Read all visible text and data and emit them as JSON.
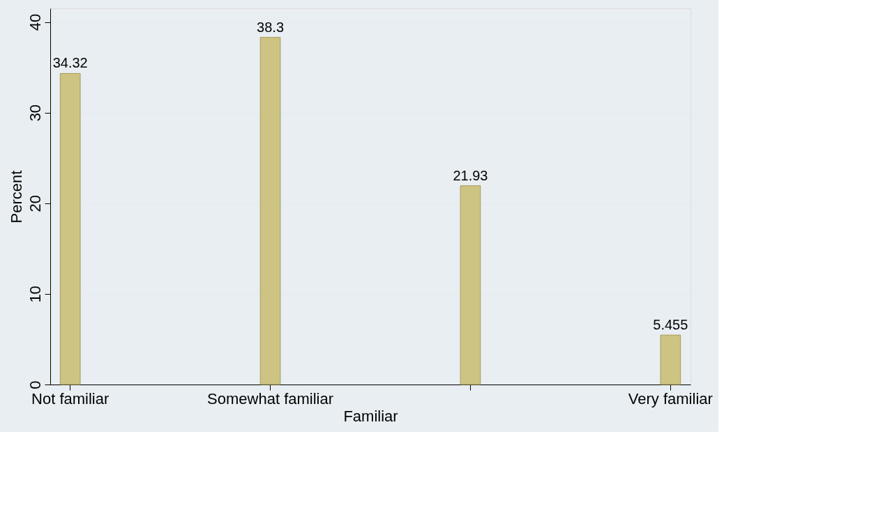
{
  "chart_data": {
    "type": "bar",
    "xlabel": "Familiar",
    "ylabel": "Percent",
    "categories": [
      "Not familiar",
      "Somewhat familiar",
      null,
      "Very familiar"
    ],
    "values": [
      34.32,
      38.3,
      21.93,
      5.455
    ],
    "color": "#cdc382",
    "ylim": [
      0,
      41.5
    ],
    "yticks": [
      0,
      10,
      20,
      30,
      40
    ],
    "grid": "y",
    "data_labels": true
  }
}
